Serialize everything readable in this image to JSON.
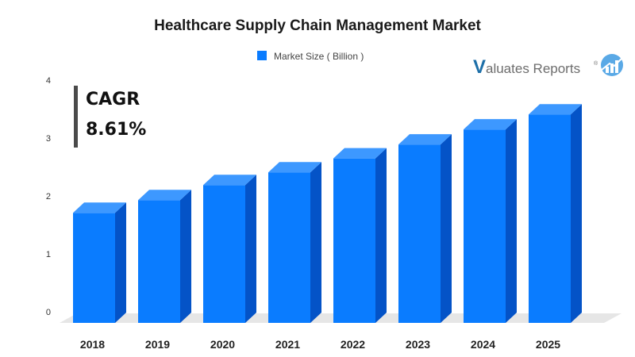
{
  "chart_data": {
    "type": "bar",
    "title": "Healthcare Supply Chain Management Market",
    "categories": [
      "2018",
      "2019",
      "2020",
      "2021",
      "2022",
      "2023",
      "2024",
      "2025"
    ],
    "series": [
      {
        "name": "Market Size ( Billion )",
        "values": [
          1.9,
          2.12,
          2.38,
          2.6,
          2.84,
          3.08,
          3.34,
          3.6
        ]
      }
    ],
    "yticks": [
      "0",
      "1",
      "2",
      "3",
      "4"
    ],
    "ylim": [
      0,
      4
    ],
    "xlabel": "",
    "ylabel": "",
    "legend_position": "top-center",
    "grid": false,
    "bar_style": "3d",
    "colors": {
      "bar_front": "#0a7cff",
      "bar_top": "#3d98ff",
      "bar_side": "#0453c7",
      "floor": "#e6e6e6"
    }
  },
  "annotation": {
    "label": "CAGR",
    "value": "8.61%"
  },
  "logo": {
    "first_letter": "V",
    "text": "aluates Reports",
    "reg_mark": "®"
  }
}
